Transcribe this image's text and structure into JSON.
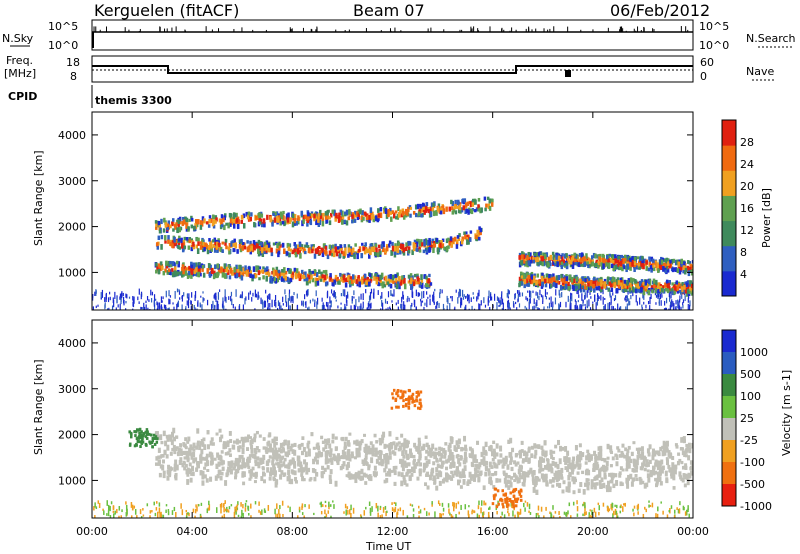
{
  "header": {
    "station": "Kerguelen (fitACF)",
    "beam": "Beam 07",
    "date": "06/Feb/2012"
  },
  "strip": {
    "nsky_label": "N.Sky",
    "nsearch_label": "N.Search",
    "nsky_ticks": [
      "10^5",
      "10^0"
    ],
    "nsearch_ticks": [
      "10^5",
      "10^0"
    ],
    "freq_label_1": "Freq.",
    "freq_label_2": "[MHz]",
    "freq_ticks": [
      "18",
      "8"
    ],
    "nave_label": "Nave",
    "nave_ticks": [
      "60",
      "0"
    ],
    "cpid_label": "CPID",
    "cpid_value": "themis 3300"
  },
  "colors": {
    "power_scale": [
      "#1a2ad0",
      "#2f5fc0",
      "#3f8a5c",
      "#5fa050",
      "#f0a020",
      "#f06a10",
      "#e02010"
    ],
    "velocity_scale": [
      "#1a2ad0",
      "#2a5cc0",
      "#3a8a40",
      "#6ac040",
      "#c0c0b8",
      "#f0a020",
      "#f07010",
      "#e82010"
    ],
    "range_gate": "#c0c0b8"
  },
  "chart_data": [
    {
      "type": "heatmap",
      "title": "",
      "xlabel": "",
      "ylabel": "Slant Range [km]",
      "x_range_hours": [
        0,
        24
      ],
      "ylim": [
        180,
        4500
      ],
      "y_ticks": [
        "1000",
        "2000",
        "3000",
        "4000"
      ],
      "colorbar": {
        "label": "Power [dB]",
        "ticks": [
          "4",
          "8",
          "12",
          "16",
          "20",
          "24",
          "28"
        ],
        "range": [
          0,
          32
        ]
      },
      "echo_bands": [
        {
          "name": "upper band",
          "points": [
            [
              2.5,
              2050
            ],
            [
              6,
              2200
            ],
            [
              10,
              2250
            ],
            [
              14,
              2450
            ],
            [
              16,
              2550
            ]
          ]
        },
        {
          "name": "main band",
          "points": [
            [
              2.5,
              1700
            ],
            [
              6,
              1600
            ],
            [
              10,
              1500
            ],
            [
              14,
              1650
            ],
            [
              15.5,
              1900
            ]
          ]
        },
        {
          "name": "lower band",
          "points": [
            [
              2.5,
              1150
            ],
            [
              6,
              1050
            ],
            [
              10,
              900
            ],
            [
              13.5,
              850
            ]
          ]
        },
        {
          "name": "late band",
          "points": [
            [
              17,
              1350
            ],
            [
              20,
              1300
            ],
            [
              23,
              1200
            ],
            [
              24,
              1150
            ]
          ]
        },
        {
          "name": "late lower band",
          "points": [
            [
              17,
              900
            ],
            [
              20,
              800
            ],
            [
              24,
              700
            ]
          ]
        }
      ]
    },
    {
      "type": "heatmap",
      "title": "",
      "xlabel": "Time UT",
      "ylabel": "Slant Range [km]",
      "x_range_hours": [
        0,
        24
      ],
      "ylim": [
        180,
        4500
      ],
      "y_ticks": [
        "1000",
        "2000",
        "3000",
        "4000"
      ],
      "x_ticks": [
        "00:00",
        "04:00",
        "08:00",
        "12:00",
        "16:00",
        "20:00",
        "00:00"
      ],
      "colorbar": {
        "label": "Velocity [m s-1]",
        "ticks": [
          "1000",
          "500",
          "100",
          "25",
          "-25",
          "-100",
          "-500",
          "-1000"
        ]
      },
      "features": [
        {
          "name": "ground scatter",
          "points": [
            [
              2.5,
              1900
            ],
            [
              8,
              1800
            ],
            [
              12,
              1800
            ],
            [
              16,
              1700
            ],
            [
              20,
              1600
            ],
            [
              24,
              1800
            ]
          ]
        },
        {
          "name": "positive velocity patch",
          "hour": 2.0,
          "km": 1950
        },
        {
          "name": "negative velocity patch",
          "hour": 12.5,
          "km": 2800
        },
        {
          "name": "negative velocity streak",
          "hour": 16.5,
          "km": 650
        }
      ]
    }
  ]
}
